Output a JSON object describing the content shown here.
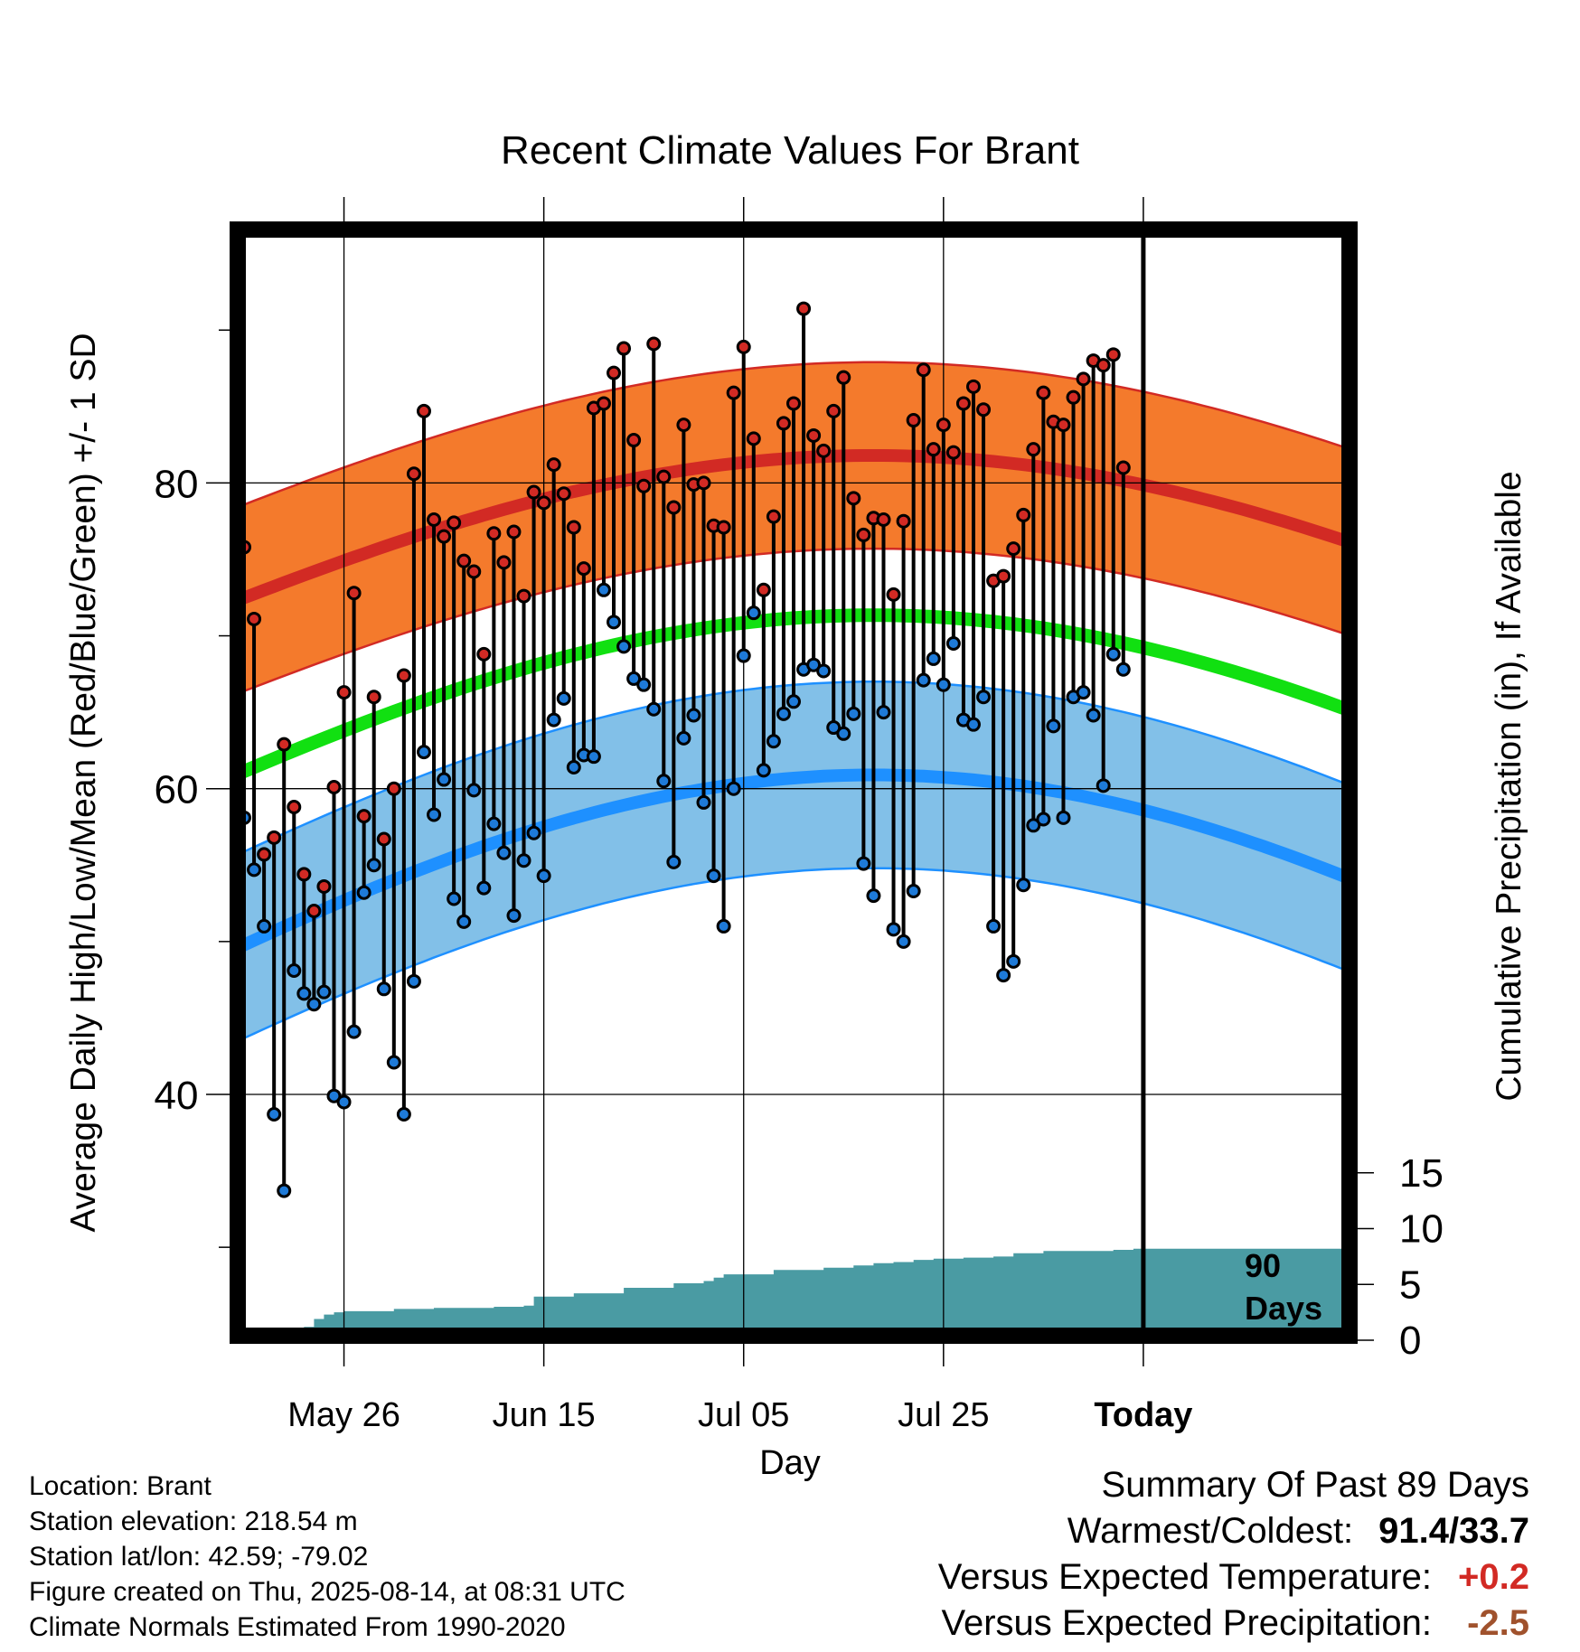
{
  "chart_data": {
    "type": "line",
    "title": "Recent Climate Values For Brant",
    "xlabel": "Day",
    "ylabel": "Average Daily High/Low/Mean (Red/Blue/Green) +/- 1 SD",
    "y2label": "Cumulative Precipitation (in), If Available",
    "x_tick_labels": [
      "May 26",
      "Jun 15",
      "Jul 05",
      "Jul 25",
      "Today"
    ],
    "y_ticks": [
      40,
      60,
      80
    ],
    "y2_ticks": [
      0,
      5,
      10,
      15
    ],
    "ylim": [
      24.5,
      97
    ],
    "y2lim": [
      0,
      30
    ],
    "marker_label": [
      "90",
      "Days"
    ],
    "grid": true,
    "colors": {
      "high_band": "#f47a2c",
      "high_line": "#d22a24",
      "low_band": "#82c0e8",
      "low_line": "#1e90ff",
      "mean_line": "#11e011",
      "precip": "#4a9ba3",
      "high_point": "#d22a24",
      "low_point": "#1e7ad8"
    },
    "days_before_today": [
      90,
      89,
      88,
      87,
      86,
      85,
      84,
      83,
      82,
      81,
      80,
      79,
      78,
      77,
      76,
      75,
      74,
      73,
      72,
      71,
      70,
      69,
      68,
      67,
      66,
      65,
      64,
      63,
      62,
      61,
      60,
      59,
      58,
      57,
      56,
      55,
      54,
      53,
      52,
      51,
      50,
      49,
      48,
      47,
      46,
      45,
      44,
      43,
      42,
      41,
      40,
      39,
      38,
      37,
      36,
      35,
      34,
      33,
      32,
      31,
      30,
      29,
      28,
      27,
      26,
      25,
      24,
      23,
      22,
      21,
      20,
      19,
      18,
      17,
      16,
      15,
      14,
      13,
      12,
      11,
      10,
      9,
      8,
      7,
      6,
      5,
      4,
      3,
      2,
      1
    ],
    "daily_high": [
      75.8,
      71.1,
      55.7,
      56.8,
      62.9,
      58.8,
      54.4,
      52.0,
      53.6,
      60.1,
      66.3,
      72.8,
      58.2,
      66.0,
      56.7,
      60.0,
      67.4,
      80.6,
      84.7,
      77.6,
      76.5,
      77.4,
      74.9,
      74.2,
      68.8,
      76.7,
      74.8,
      76.8,
      72.6,
      79.4,
      78.7,
      81.2,
      79.3,
      77.1,
      74.4,
      84.9,
      85.2,
      87.2,
      88.8,
      82.8,
      79.8,
      89.1,
      80.4,
      78.4,
      83.8,
      79.9,
      80.0,
      77.2,
      77.1,
      85.9,
      88.9,
      82.9,
      73.0,
      77.8,
      83.9,
      85.2,
      91.4,
      83.1,
      82.1,
      84.7,
      86.9,
      79.0,
      76.6,
      77.7,
      77.6,
      72.7,
      77.5,
      84.1,
      87.4,
      82.2,
      83.8,
      82.0,
      85.2,
      86.3,
      84.8,
      73.6,
      73.9,
      75.7,
      77.9,
      82.2,
      85.9,
      84.0,
      83.8,
      85.6,
      86.8,
      88.0,
      87.7,
      88.4,
      81.0
    ],
    "daily_low": [
      58.1,
      54.7,
      51.0,
      38.7,
      33.7,
      48.1,
      46.6,
      45.9,
      46.7,
      39.9,
      39.5,
      44.1,
      53.2,
      55.0,
      46.9,
      42.1,
      38.7,
      47.4,
      62.4,
      58.3,
      60.6,
      52.8,
      51.3,
      59.9,
      53.5,
      57.7,
      55.8,
      51.7,
      55.3,
      57.1,
      54.3,
      64.5,
      65.9,
      61.4,
      62.2,
      62.1,
      73.0,
      70.9,
      69.3,
      67.2,
      66.8,
      65.2,
      60.5,
      55.2,
      63.3,
      64.8,
      59.1,
      54.3,
      51.0,
      60.0,
      68.7,
      71.5,
      61.2,
      63.1,
      64.9,
      65.7,
      67.8,
      68.1,
      67.7,
      64.0,
      63.6,
      64.9,
      55.1,
      53.0,
      65.0,
      50.8,
      50.0,
      53.3,
      67.1,
      68.5,
      66.8,
      69.5,
      64.5,
      64.2,
      66.0,
      51.0,
      47.8,
      48.7,
      53.7,
      57.6,
      58.0,
      64.1,
      58.1,
      66.0,
      66.3,
      64.8,
      60.2,
      68.8,
      67.8
    ]
  },
  "info": {
    "location": "Location: Brant",
    "elevation": "Station elevation: 218.54 m",
    "latlon": "Station lat/lon: 42.59; -79.02",
    "created": "Figure created on Thu, 2025-08-14, at 08:31 UTC",
    "normals": "Climate Normals Estimated From 1990-2020"
  },
  "summary": {
    "heading": "Summary Of Past 89 Days",
    "warm_label": "Warmest/Coldest:",
    "warm_value": "91.4/33.7",
    "temp_label": "Versus Expected Temperature:",
    "temp_value": "+0.2",
    "temp_color": "#d22a24",
    "precip_label": "Versus Expected Precipitation:",
    "precip_value": "-2.5",
    "precip_color": "#a0522d"
  }
}
